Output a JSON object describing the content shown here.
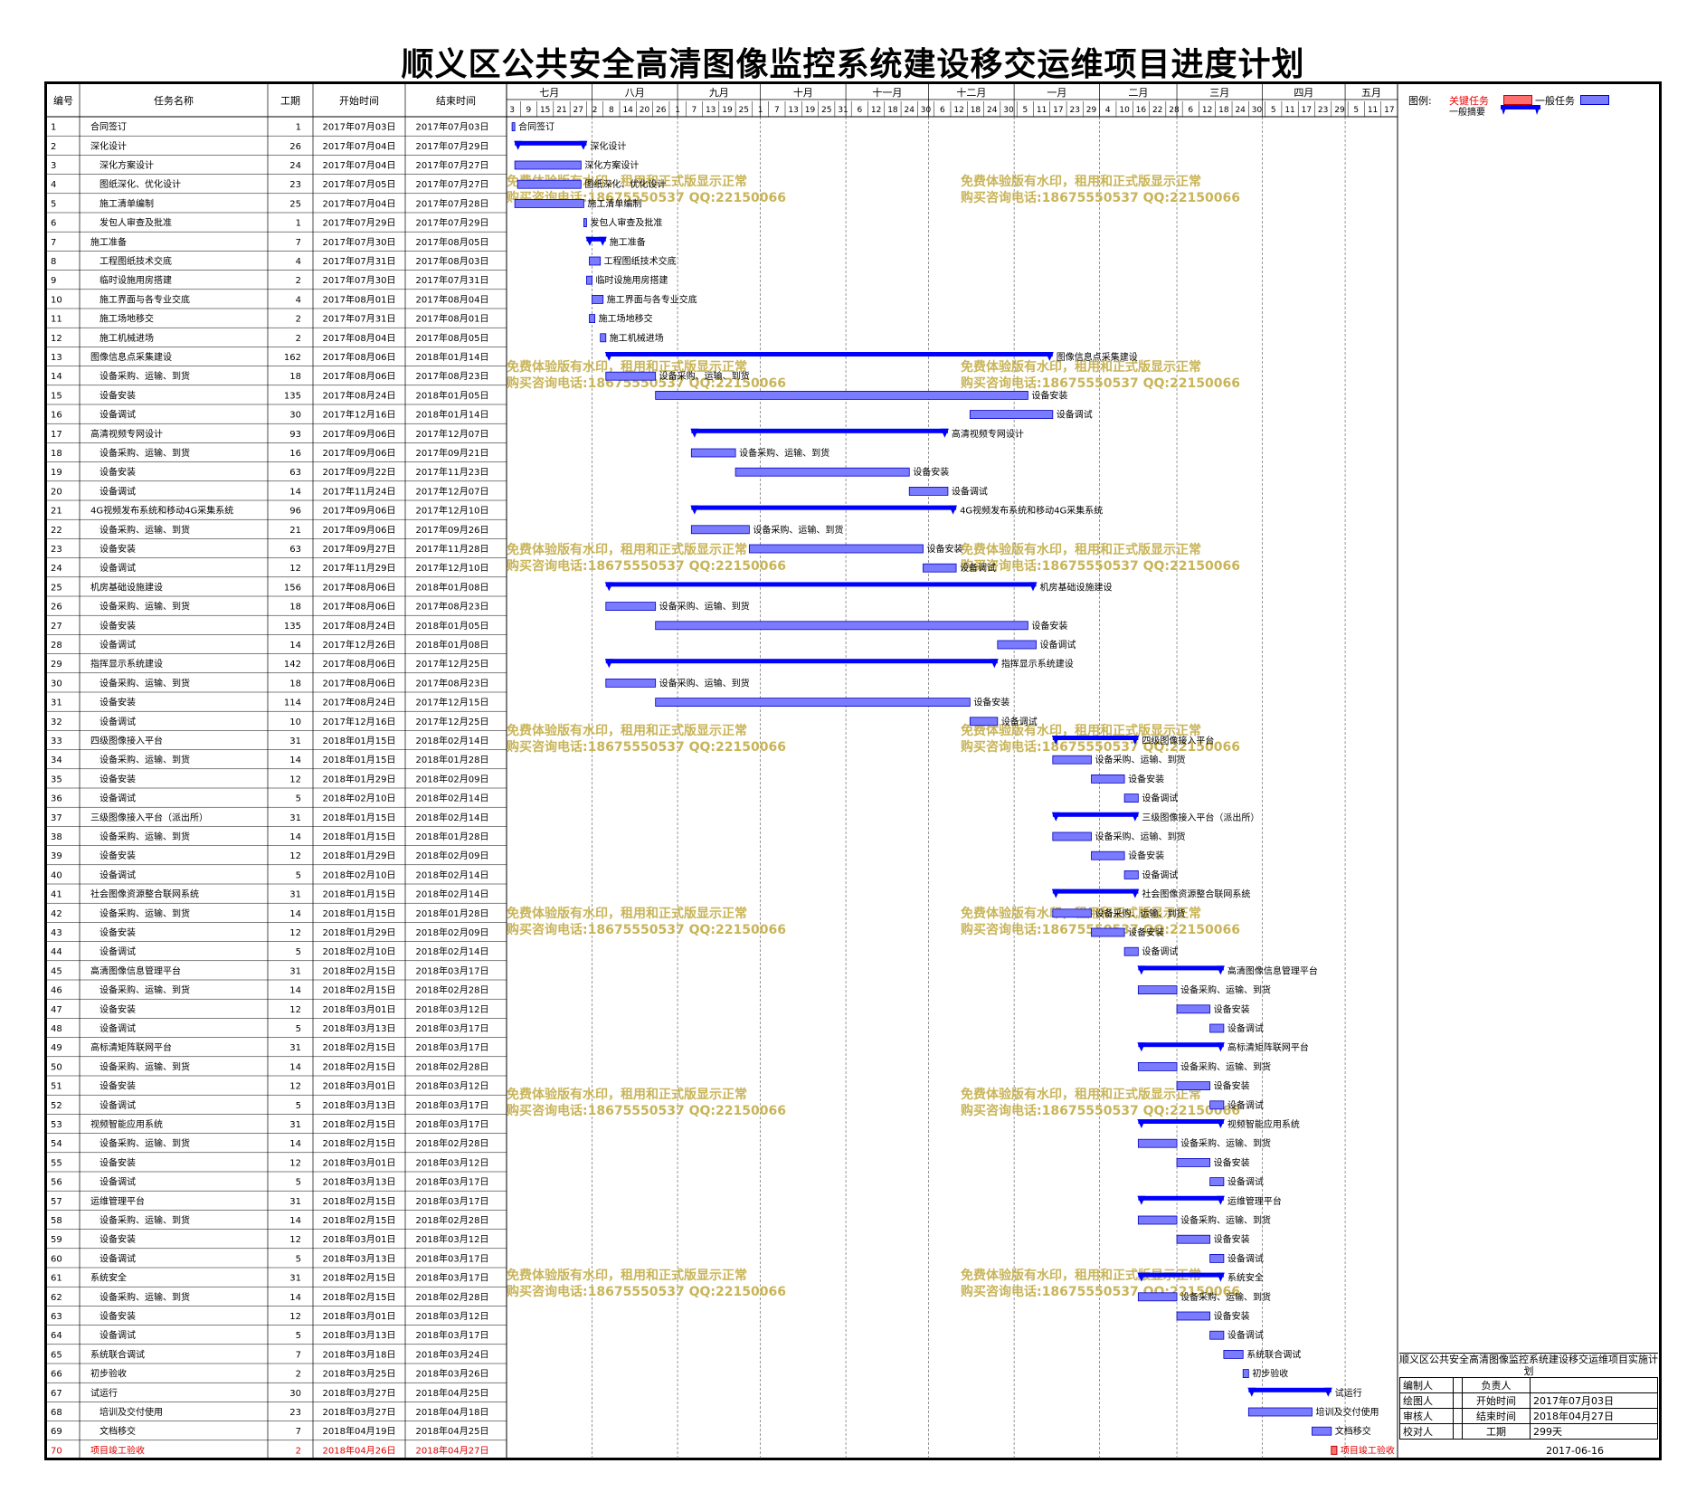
{
  "title": "顺义区公共安全高清图像监控系统建设移交运维项目进度计划",
  "columns": {
    "id": "编号",
    "name": "任务名称",
    "dur": "工期",
    "start": "开始时间",
    "end": "结束时间"
  },
  "months": [
    {
      "label": "七月",
      "days": [
        "3",
        "9",
        "15",
        "21",
        "27"
      ]
    },
    {
      "label": "八月",
      "days": [
        "2",
        "8",
        "14",
        "20",
        "26"
      ]
    },
    {
      "label": "九月",
      "days": [
        "1",
        "7",
        "13",
        "19",
        "25"
      ]
    },
    {
      "label": "十月",
      "days": [
        "1",
        "7",
        "13",
        "19",
        "25",
        "31"
      ]
    },
    {
      "label": "十一月",
      "days": [
        "6",
        "12",
        "18",
        "24",
        "30"
      ]
    },
    {
      "label": "十二月",
      "days": [
        "6",
        "12",
        "18",
        "24",
        "30"
      ]
    },
    {
      "label": "一月",
      "days": [
        "5",
        "11",
        "17",
        "23",
        "29"
      ]
    },
    {
      "label": "二月",
      "days": [
        "4",
        "10",
        "16",
        "22",
        "28"
      ]
    },
    {
      "label": "三月",
      "days": [
        "6",
        "12",
        "18",
        "24",
        "30"
      ]
    },
    {
      "label": "四月",
      "days": [
        "5",
        "11",
        "17",
        "23",
        "29"
      ]
    },
    {
      "label": "五月",
      "days": [
        "5",
        "11",
        "17"
      ]
    }
  ],
  "legend": {
    "title": "图例:",
    "critical": "关键任务",
    "general": "一般任务",
    "summary": "一般摘要",
    "critical_color": "#FF6F6F",
    "general_color": "#7B7BFF",
    "summary_color": "#0000FF"
  },
  "watermark": {
    "line1": "免费体验版有水印，租用和正式版显示正常",
    "line2": "购买咨询电话:18675550537 QQ:22150066",
    "color": "#C9B458"
  },
  "info": {
    "caption": "顺义区公共安全高清图像监控系统建设移交运维项目实施计划",
    "rows": [
      [
        "编制人",
        "",
        "负责人",
        ""
      ],
      [
        "绘图人",
        "",
        "开始时间",
        "2017年07月03日"
      ],
      [
        "审核人",
        "",
        "结束时间",
        "2018年04月27日"
      ],
      [
        "校对人",
        "",
        "工期",
        "299天"
      ]
    ],
    "date": "2017-06-16"
  },
  "chart_data": {
    "type": "gantt",
    "x_start": "2017-07-01",
    "x_end": "2018-05-20",
    "tasks": [
      {
        "id": "1",
        "name": "合同签订",
        "dur": "1",
        "start": "2017年07月03日",
        "end": "2017年07月03日",
        "kind": "task",
        "indent": 0
      },
      {
        "id": "2",
        "name": "深化设计",
        "dur": "26",
        "start": "2017年07月04日",
        "end": "2017年07月29日",
        "kind": "summary",
        "indent": 0
      },
      {
        "id": "3",
        "name": "深化方案设计",
        "dur": "24",
        "start": "2017年07月04日",
        "end": "2017年07月27日",
        "kind": "task",
        "indent": 1
      },
      {
        "id": "4",
        "name": "图纸深化、优化设计",
        "dur": "23",
        "start": "2017年07月05日",
        "end": "2017年07月27日",
        "kind": "task",
        "indent": 1
      },
      {
        "id": "5",
        "name": "施工清单编制",
        "dur": "25",
        "start": "2017年07月04日",
        "end": "2017年07月28日",
        "kind": "task",
        "indent": 1
      },
      {
        "id": "6",
        "name": "发包人审查及批准",
        "dur": "1",
        "start": "2017年07月29日",
        "end": "2017年07月29日",
        "kind": "task",
        "indent": 1
      },
      {
        "id": "7",
        "name": "施工准备",
        "dur": "7",
        "start": "2017年07月30日",
        "end": "2017年08月05日",
        "kind": "summary",
        "indent": 0
      },
      {
        "id": "8",
        "name": "工程图纸技术交底",
        "dur": "4",
        "start": "2017年07月31日",
        "end": "2017年08月03日",
        "kind": "task",
        "indent": 1
      },
      {
        "id": "9",
        "name": "临时设施用房搭建",
        "dur": "2",
        "start": "2017年07月30日",
        "end": "2017年07月31日",
        "kind": "task",
        "indent": 1
      },
      {
        "id": "10",
        "name": "施工界面与各专业交底",
        "dur": "4",
        "start": "2017年08月01日",
        "end": "2017年08月04日",
        "kind": "task",
        "indent": 1
      },
      {
        "id": "11",
        "name": "施工场地移交",
        "dur": "2",
        "start": "2017年07月31日",
        "end": "2017年08月01日",
        "kind": "task",
        "indent": 1
      },
      {
        "id": "12",
        "name": "施工机械进场",
        "dur": "2",
        "start": "2017年08月04日",
        "end": "2017年08月05日",
        "kind": "task",
        "indent": 1
      },
      {
        "id": "13",
        "name": "图像信息点采集建设",
        "dur": "162",
        "start": "2017年08月06日",
        "end": "2018年01月14日",
        "kind": "summary",
        "indent": 0
      },
      {
        "id": "14",
        "name": "设备采购、运输、到货",
        "dur": "18",
        "start": "2017年08月06日",
        "end": "2017年08月23日",
        "kind": "task",
        "indent": 1
      },
      {
        "id": "15",
        "name": "设备安装",
        "dur": "135",
        "start": "2017年08月24日",
        "end": "2018年01月05日",
        "kind": "task",
        "indent": 1
      },
      {
        "id": "16",
        "name": "设备调试",
        "dur": "30",
        "start": "2017年12月16日",
        "end": "2018年01月14日",
        "kind": "task",
        "indent": 1
      },
      {
        "id": "17",
        "name": "高清视频专网设计",
        "dur": "93",
        "start": "2017年09月06日",
        "end": "2017年12月07日",
        "kind": "summary",
        "indent": 0
      },
      {
        "id": "18",
        "name": "设备采购、运输、到货",
        "dur": "16",
        "start": "2017年09月06日",
        "end": "2017年09月21日",
        "kind": "task",
        "indent": 1
      },
      {
        "id": "19",
        "name": "设备安装",
        "dur": "63",
        "start": "2017年09月22日",
        "end": "2017年11月23日",
        "kind": "task",
        "indent": 1
      },
      {
        "id": "20",
        "name": "设备调试",
        "dur": "14",
        "start": "2017年11月24日",
        "end": "2017年12月07日",
        "kind": "task",
        "indent": 1
      },
      {
        "id": "21",
        "name": "4G视频发布系统和移动4G采集系统",
        "dur": "96",
        "start": "2017年09月06日",
        "end": "2017年12月10日",
        "kind": "summary",
        "indent": 0
      },
      {
        "id": "22",
        "name": "设备采购、运输、到货",
        "dur": "21",
        "start": "2017年09月06日",
        "end": "2017年09月26日",
        "kind": "task",
        "indent": 1
      },
      {
        "id": "23",
        "name": "设备安装",
        "dur": "63",
        "start": "2017年09月27日",
        "end": "2017年11月28日",
        "kind": "task",
        "indent": 1
      },
      {
        "id": "24",
        "name": "设备调试",
        "dur": "12",
        "start": "2017年11月29日",
        "end": "2017年12月10日",
        "kind": "task",
        "indent": 1
      },
      {
        "id": "25",
        "name": "机房基础设施建设",
        "dur": "156",
        "start": "2017年08月06日",
        "end": "2018年01月08日",
        "kind": "summary",
        "indent": 0
      },
      {
        "id": "26",
        "name": "设备采购、运输、到货",
        "dur": "18",
        "start": "2017年08月06日",
        "end": "2017年08月23日",
        "kind": "task",
        "indent": 1
      },
      {
        "id": "27",
        "name": "设备安装",
        "dur": "135",
        "start": "2017年08月24日",
        "end": "2018年01月05日",
        "kind": "task",
        "indent": 1
      },
      {
        "id": "28",
        "name": "设备调试",
        "dur": "14",
        "start": "2017年12月26日",
        "end": "2018年01月08日",
        "kind": "task",
        "indent": 1
      },
      {
        "id": "29",
        "name": "指挥显示系统建设",
        "dur": "142",
        "start": "2017年08月06日",
        "end": "2017年12月25日",
        "kind": "summary",
        "indent": 0
      },
      {
        "id": "30",
        "name": "设备采购、运输、到货",
        "dur": "18",
        "start": "2017年08月06日",
        "end": "2017年08月23日",
        "kind": "task",
        "indent": 1
      },
      {
        "id": "31",
        "name": "设备安装",
        "dur": "114",
        "start": "2017年08月24日",
        "end": "2017年12月15日",
        "kind": "task",
        "indent": 1
      },
      {
        "id": "32",
        "name": "设备调试",
        "dur": "10",
        "start": "2017年12月16日",
        "end": "2017年12月25日",
        "kind": "task",
        "indent": 1
      },
      {
        "id": "33",
        "name": "四级图像接入平台",
        "dur": "31",
        "start": "2018年01月15日",
        "end": "2018年02月14日",
        "kind": "summary",
        "indent": 0
      },
      {
        "id": "34",
        "name": "设备采购、运输、到货",
        "dur": "14",
        "start": "2018年01月15日",
        "end": "2018年01月28日",
        "kind": "task",
        "indent": 1
      },
      {
        "id": "35",
        "name": "设备安装",
        "dur": "12",
        "start": "2018年01月29日",
        "end": "2018年02月09日",
        "kind": "task",
        "indent": 1
      },
      {
        "id": "36",
        "name": "设备调试",
        "dur": "5",
        "start": "2018年02月10日",
        "end": "2018年02月14日",
        "kind": "task",
        "indent": 1
      },
      {
        "id": "37",
        "name": "三级图像接入平台（派出所）",
        "dur": "31",
        "start": "2018年01月15日",
        "end": "2018年02月14日",
        "kind": "summary",
        "indent": 0
      },
      {
        "id": "38",
        "name": "设备采购、运输、到货",
        "dur": "14",
        "start": "2018年01月15日",
        "end": "2018年01月28日",
        "kind": "task",
        "indent": 1
      },
      {
        "id": "39",
        "name": "设备安装",
        "dur": "12",
        "start": "2018年01月29日",
        "end": "2018年02月09日",
        "kind": "task",
        "indent": 1
      },
      {
        "id": "40",
        "name": "设备调试",
        "dur": "5",
        "start": "2018年02月10日",
        "end": "2018年02月14日",
        "kind": "task",
        "indent": 1
      },
      {
        "id": "41",
        "name": "社会图像资源整合联网系统",
        "dur": "31",
        "start": "2018年01月15日",
        "end": "2018年02月14日",
        "kind": "summary",
        "indent": 0
      },
      {
        "id": "42",
        "name": "设备采购、运输、到货",
        "dur": "14",
        "start": "2018年01月15日",
        "end": "2018年01月28日",
        "kind": "task",
        "indent": 1
      },
      {
        "id": "43",
        "name": "设备安装",
        "dur": "12",
        "start": "2018年01月29日",
        "end": "2018年02月09日",
        "kind": "task",
        "indent": 1
      },
      {
        "id": "44",
        "name": "设备调试",
        "dur": "5",
        "start": "2018年02月10日",
        "end": "2018年02月14日",
        "kind": "task",
        "indent": 1
      },
      {
        "id": "45",
        "name": "高清图像信息管理平台",
        "dur": "31",
        "start": "2018年02月15日",
        "end": "2018年03月17日",
        "kind": "summary",
        "indent": 0
      },
      {
        "id": "46",
        "name": "设备采购、运输、到货",
        "dur": "14",
        "start": "2018年02月15日",
        "end": "2018年02月28日",
        "kind": "task",
        "indent": 1
      },
      {
        "id": "47",
        "name": "设备安装",
        "dur": "12",
        "start": "2018年03月01日",
        "end": "2018年03月12日",
        "kind": "task",
        "indent": 1
      },
      {
        "id": "48",
        "name": "设备调试",
        "dur": "5",
        "start": "2018年03月13日",
        "end": "2018年03月17日",
        "kind": "task",
        "indent": 1
      },
      {
        "id": "49",
        "name": "高标清矩阵联网平台",
        "dur": "31",
        "start": "2018年02月15日",
        "end": "2018年03月17日",
        "kind": "summary",
        "indent": 0
      },
      {
        "id": "50",
        "name": "设备采购、运输、到货",
        "dur": "14",
        "start": "2018年02月15日",
        "end": "2018年02月28日",
        "kind": "task",
        "indent": 1
      },
      {
        "id": "51",
        "name": "设备安装",
        "dur": "12",
        "start": "2018年03月01日",
        "end": "2018年03月12日",
        "kind": "task",
        "indent": 1
      },
      {
        "id": "52",
        "name": "设备调试",
        "dur": "5",
        "start": "2018年03月13日",
        "end": "2018年03月17日",
        "kind": "task",
        "indent": 1
      },
      {
        "id": "53",
        "name": "视频智能应用系统",
        "dur": "31",
        "start": "2018年02月15日",
        "end": "2018年03月17日",
        "kind": "summary",
        "indent": 0
      },
      {
        "id": "54",
        "name": "设备采购、运输、到货",
        "dur": "14",
        "start": "2018年02月15日",
        "end": "2018年02月28日",
        "kind": "task",
        "indent": 1
      },
      {
        "id": "55",
        "name": "设备安装",
        "dur": "12",
        "start": "2018年03月01日",
        "end": "2018年03月12日",
        "kind": "task",
        "indent": 1
      },
      {
        "id": "56",
        "name": "设备调试",
        "dur": "5",
        "start": "2018年03月13日",
        "end": "2018年03月17日",
        "kind": "task",
        "indent": 1
      },
      {
        "id": "57",
        "name": "运维管理平台",
        "dur": "31",
        "start": "2018年02月15日",
        "end": "2018年03月17日",
        "kind": "summary",
        "indent": 0
      },
      {
        "id": "58",
        "name": "设备采购、运输、到货",
        "dur": "14",
        "start": "2018年02月15日",
        "end": "2018年02月28日",
        "kind": "task",
        "indent": 1
      },
      {
        "id": "59",
        "name": "设备安装",
        "dur": "12",
        "start": "2018年03月01日",
        "end": "2018年03月12日",
        "kind": "task",
        "indent": 1
      },
      {
        "id": "60",
        "name": "设备调试",
        "dur": "5",
        "start": "2018年03月13日",
        "end": "2018年03月17日",
        "kind": "task",
        "indent": 1
      },
      {
        "id": "61",
        "name": "系统安全",
        "dur": "31",
        "start": "2018年02月15日",
        "end": "2018年03月17日",
        "kind": "summary",
        "indent": 0
      },
      {
        "id": "62",
        "name": "设备采购、运输、到货",
        "dur": "14",
        "start": "2018年02月15日",
        "end": "2018年02月28日",
        "kind": "task",
        "indent": 1
      },
      {
        "id": "63",
        "name": "设备安装",
        "dur": "12",
        "start": "2018年03月01日",
        "end": "2018年03月12日",
        "kind": "task",
        "indent": 1
      },
      {
        "id": "64",
        "name": "设备调试",
        "dur": "5",
        "start": "2018年03月13日",
        "end": "2018年03月17日",
        "kind": "task",
        "indent": 1
      },
      {
        "id": "65",
        "name": "系统联合调试",
        "dur": "7",
        "start": "2018年03月18日",
        "end": "2018年03月24日",
        "kind": "task",
        "indent": 0
      },
      {
        "id": "66",
        "name": "初步验收",
        "dur": "2",
        "start": "2018年03月25日",
        "end": "2018年03月26日",
        "kind": "task",
        "indent": 0
      },
      {
        "id": "67",
        "name": "试运行",
        "dur": "30",
        "start": "2018年03月27日",
        "end": "2018年04月25日",
        "kind": "summary",
        "indent": 0
      },
      {
        "id": "68",
        "name": "培训及交付使用",
        "dur": "23",
        "start": "2018年03月27日",
        "end": "2018年04月18日",
        "kind": "task",
        "indent": 1
      },
      {
        "id": "69",
        "name": "文档移交",
        "dur": "7",
        "start": "2018年04月19日",
        "end": "2018年04月25日",
        "kind": "task",
        "indent": 1
      },
      {
        "id": "70",
        "name": "项目竣工验收",
        "dur": "2",
        "start": "2018年04月26日",
        "end": "2018年04月27日",
        "kind": "critical",
        "indent": 0
      }
    ]
  }
}
